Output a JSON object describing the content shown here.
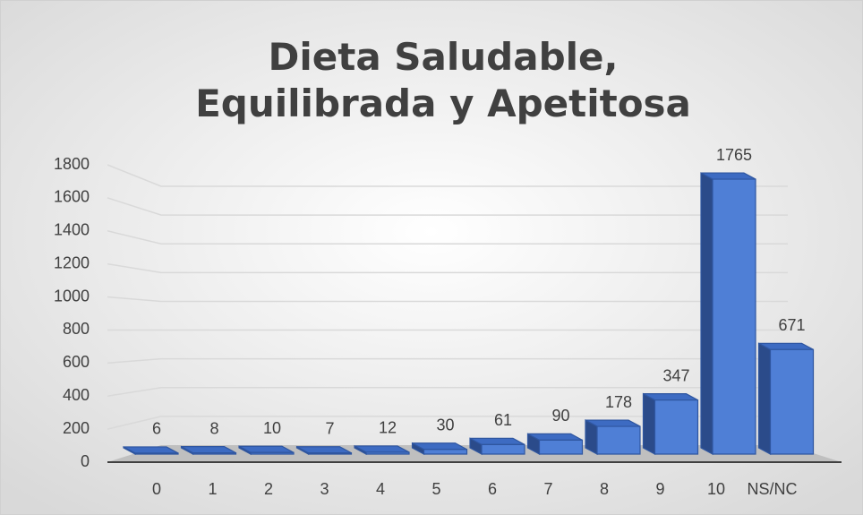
{
  "chart_data": {
    "type": "bar3d",
    "title": "Dieta Saludable, Equilibrada y Apetitosa",
    "categories": [
      "0",
      "1",
      "2",
      "3",
      "4",
      "5",
      "6",
      "7",
      "8",
      "9",
      "10",
      "NS/NC"
    ],
    "values": [
      6,
      8,
      10,
      7,
      12,
      30,
      61,
      90,
      178,
      347,
      1765,
      671
    ],
    "color": "#4f7fd6",
    "ylim": [
      0,
      1800
    ],
    "yticks": [
      0,
      200,
      400,
      600,
      800,
      1000,
      1200,
      1400,
      1600,
      1800
    ],
    "grid": true
  }
}
